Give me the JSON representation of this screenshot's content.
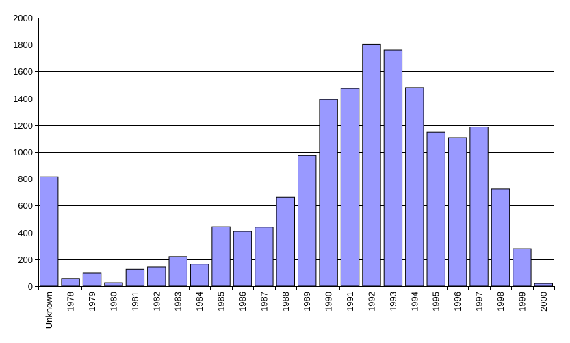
{
  "chart_data": {
    "type": "bar",
    "title": "",
    "xlabel": "",
    "ylabel": "",
    "categories": [
      "Unknown",
      "1978",
      "1979",
      "1980",
      "1981",
      "1982",
      "1983",
      "1984",
      "1985",
      "1986",
      "1987",
      "1988",
      "1989",
      "1990",
      "1991",
      "1992",
      "1993",
      "1994",
      "1995",
      "1996",
      "1997",
      "1998",
      "1999",
      "2000"
    ],
    "values": [
      815,
      57,
      97,
      25,
      126,
      143,
      220,
      165,
      443,
      408,
      440,
      662,
      973,
      1392,
      1474,
      1804,
      1760,
      1480,
      1147,
      1107,
      1186,
      725,
      280,
      20
    ],
    "ylim": [
      0,
      2000
    ],
    "yticks": [
      0,
      200,
      400,
      600,
      800,
      1000,
      1200,
      1400,
      1600,
      1800,
      2000
    ],
    "grid": true,
    "legend": "none",
    "colors": {
      "bar_fill": "#9999ff",
      "bar_stroke": "#000000",
      "grid": "#000000",
      "axis": "#000000",
      "text": "#000000"
    }
  }
}
